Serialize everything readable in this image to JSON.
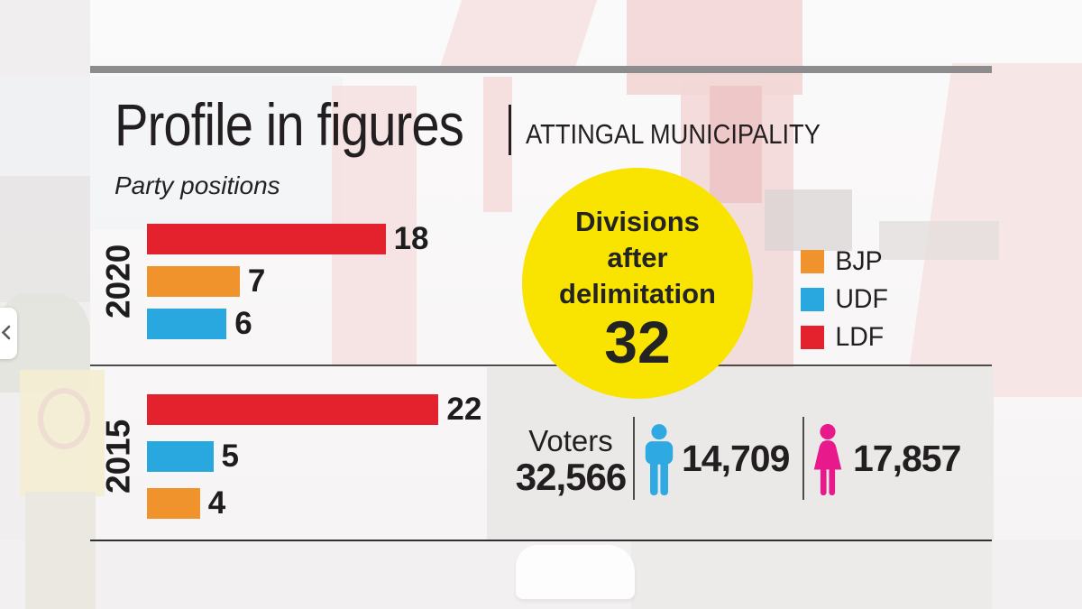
{
  "colors": {
    "top_bar_gray": "#8c8c8e",
    "panel_gray": "#eae9e8",
    "circle_yellow": "#f9e300",
    "text_dark": "#231f20",
    "male_blue": "#2fa9e1",
    "female_pink": "#e8198b"
  },
  "header": {
    "title": "Profile in figures",
    "subtitle": "ATTINGAL MUNICIPALITY"
  },
  "chart": {
    "section_label": "Party positions",
    "party_colors": {
      "LDF": "#e4222e",
      "BJP": "#f0932d",
      "UDF": "#29a8e0"
    },
    "groups": [
      {
        "year": "2020",
        "bars": [
          {
            "party": "LDF",
            "value": 18
          },
          {
            "party": "BJP",
            "value": 7
          },
          {
            "party": "UDF",
            "value": 6
          }
        ]
      },
      {
        "year": "2015",
        "bars": [
          {
            "party": "LDF",
            "value": 22
          },
          {
            "party": "UDF",
            "value": 5
          },
          {
            "party": "BJP",
            "value": 4
          }
        ]
      }
    ]
  },
  "legend": {
    "items": [
      {
        "label": "BJP",
        "color": "#f0932d"
      },
      {
        "label": "UDF",
        "color": "#29a8e0"
      },
      {
        "label": "LDF",
        "color": "#e4222e"
      }
    ]
  },
  "divisions_circle": {
    "line1": "Divisions",
    "line2": "after",
    "line3": "delimitation",
    "value": "32"
  },
  "voters": {
    "label": "Voters",
    "total": "32,566",
    "male": "14,709",
    "female": "17,857"
  },
  "icons": {
    "carousel_prev": "chevron-left-icon",
    "male": "male-person-icon",
    "female": "female-person-icon"
  },
  "chart_data": {
    "type": "bar",
    "orientation": "horizontal",
    "title": "Profile in figures | Attingal Municipality",
    "subtitle": "Party positions",
    "categories": [
      "2020",
      "2015"
    ],
    "series": [
      {
        "name": "LDF",
        "color": "#e4222e",
        "values": [
          18,
          22
        ]
      },
      {
        "name": "BJP",
        "color": "#f0932d",
        "values": [
          7,
          4
        ]
      },
      {
        "name": "UDF",
        "color": "#29a8e0",
        "values": [
          6,
          5
        ]
      }
    ],
    "bar_order": {
      "2020": [
        "LDF",
        "BJP",
        "UDF"
      ],
      "2015": [
        "LDF",
        "UDF",
        "BJP"
      ]
    },
    "value_labels": true,
    "xlim": [
      0,
      24
    ],
    "grid": false,
    "legend_entries": [
      "BJP",
      "UDF",
      "LDF"
    ],
    "legend_position": "right",
    "annotations": [
      {
        "label": "Divisions after delimitation",
        "value": 32
      },
      {
        "label": "Voters total",
        "value": 32566
      },
      {
        "label": "Voters male",
        "value": 14709
      },
      {
        "label": "Voters female",
        "value": 17857
      }
    ]
  }
}
